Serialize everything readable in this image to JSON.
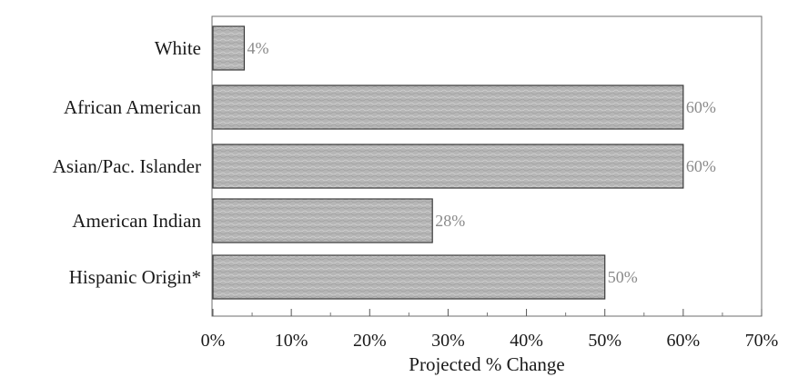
{
  "chart_data": {
    "type": "bar",
    "orientation": "horizontal",
    "categories": [
      "White",
      "African American",
      "Asian/Pac. Islander",
      "American Indian",
      "Hispanic Origin*"
    ],
    "values": [
      4,
      60,
      60,
      28,
      50
    ],
    "value_labels": [
      "4%",
      "60%",
      "60%",
      "28%",
      "50%"
    ],
    "xlabel": "Projected % Change",
    "xlim": [
      0,
      70
    ],
    "xticks": [
      0,
      10,
      20,
      30,
      40,
      50,
      60,
      70
    ],
    "xtick_labels": [
      "0%",
      "10%",
      "20%",
      "30%",
      "40%",
      "50%",
      "60%",
      "70%"
    ],
    "bar_color": "#b8b8b8",
    "bar_edge_color": "#3a3a3a",
    "grid": false,
    "legend": "none"
  }
}
